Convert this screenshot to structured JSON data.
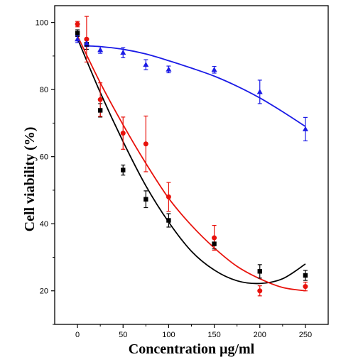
{
  "chart_data": {
    "type": "scatter",
    "title": "",
    "xlabel": "Concentration μg/ml",
    "ylabel": "Cell viability (%)",
    "xlim": [
      -25,
      275
    ],
    "ylim": [
      10,
      105
    ],
    "xticks": [
      0,
      50,
      100,
      150,
      200,
      250
    ],
    "yticks": [
      20,
      40,
      60,
      80,
      100
    ],
    "grid": false,
    "legend": "none",
    "series": [
      {
        "marker": "square",
        "color": "#000000",
        "x": [
          0,
          10,
          25,
          50,
          75,
          100,
          150,
          200,
          250
        ],
        "y": [
          96.8,
          93.5,
          73.8,
          56.0,
          47.3,
          41.0,
          34.0,
          25.8,
          24.6
        ],
        "err": [
          1.0,
          1.5,
          2.0,
          1.5,
          2.5,
          2.0,
          1.5,
          2.0,
          1.5
        ],
        "fit": [
          [
            0,
            95.2
          ],
          [
            25,
            79.1
          ],
          [
            50,
            64.5
          ],
          [
            75,
            51.3
          ],
          [
            100,
            40.5
          ],
          [
            125,
            31.8
          ],
          [
            150,
            26.2
          ],
          [
            175,
            23.0
          ],
          [
            200,
            22.2
          ],
          [
            225,
            23.6
          ],
          [
            250,
            28.0
          ]
        ]
      },
      {
        "marker": "circle",
        "color": "#e8120c",
        "x": [
          0,
          10,
          25,
          50,
          75,
          100,
          150,
          200,
          250
        ],
        "y": [
          99.5,
          95.0,
          77.0,
          67.0,
          63.8,
          48.0,
          35.8,
          20.0,
          21.3
        ],
        "err": [
          0.8,
          6.8,
          5.0,
          4.8,
          8.3,
          4.3,
          3.7,
          1.5,
          1.3
        ],
        "fit": [
          [
            0,
            96.0
          ],
          [
            25,
            82.0
          ],
          [
            50,
            69.5
          ],
          [
            75,
            58.0
          ],
          [
            100,
            47.6
          ],
          [
            125,
            39.5
          ],
          [
            150,
            32.8
          ],
          [
            175,
            27.3
          ],
          [
            200,
            23.6
          ],
          [
            225,
            21.0
          ],
          [
            250,
            20.0
          ]
        ]
      },
      {
        "marker": "triangle",
        "color": "#1a1ae6",
        "x": [
          0,
          10,
          25,
          50,
          75,
          100,
          150,
          200,
          250
        ],
        "y": [
          95.0,
          93.8,
          91.8,
          91.0,
          87.4,
          86.0,
          85.9,
          79.3,
          68.2
        ],
        "err": [
          1.0,
          1.0,
          1.0,
          1.5,
          1.5,
          1.0,
          1.0,
          3.5,
          3.5
        ],
        "fit": [
          [
            10,
            93.0
          ],
          [
            25,
            92.8
          ],
          [
            50,
            92.0
          ],
          [
            75,
            90.6
          ],
          [
            100,
            88.6
          ],
          [
            125,
            86.4
          ],
          [
            150,
            84.0
          ],
          [
            175,
            81.0
          ],
          [
            200,
            77.5
          ],
          [
            225,
            73.4
          ],
          [
            250,
            69.0
          ]
        ]
      }
    ]
  }
}
